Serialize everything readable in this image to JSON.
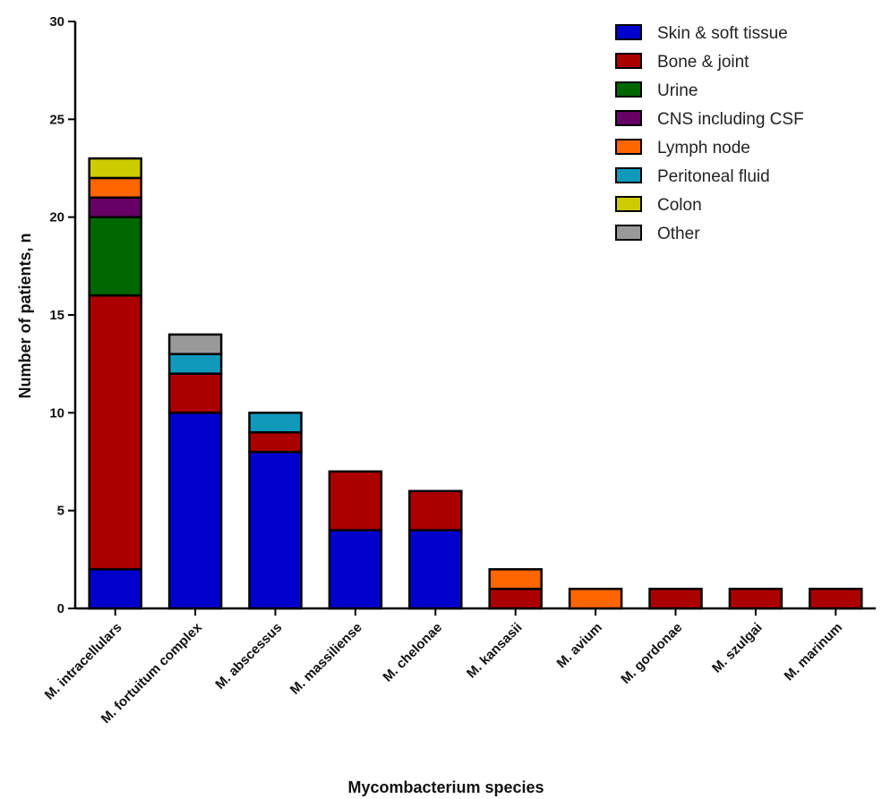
{
  "chart_data": {
    "type": "bar",
    "stacked": true,
    "title": "",
    "xlabel": "Mycombacterium species",
    "ylabel": "Number of patients, n",
    "ylim": [
      0,
      30
    ],
    "yticks": [
      0,
      5,
      10,
      15,
      20,
      25,
      30
    ],
    "grid": false,
    "legend_position": "top-right",
    "categories": [
      "M. intracellulars",
      "M. fortuitum complex",
      "M. abscessus",
      "M. massiliense",
      "M. chelonae",
      "M. kansasii",
      "M. avium",
      "M. gordonae",
      "M. szulgai",
      "M. marinum"
    ],
    "series": [
      {
        "name": "Skin & soft tissue",
        "color": "#0000cc",
        "values": [
          2,
          10,
          8,
          4,
          4,
          0,
          0,
          0,
          0,
          0
        ]
      },
      {
        "name": "Bone & joint",
        "color": "#aa0000",
        "values": [
          14,
          2,
          1,
          3,
          2,
          1,
          0,
          1,
          1,
          1
        ]
      },
      {
        "name": "Urine",
        "color": "#006600",
        "values": [
          4,
          0,
          0,
          0,
          0,
          0,
          0,
          0,
          0,
          0
        ]
      },
      {
        "name": "CNS including CSF",
        "color": "#660066",
        "values": [
          1,
          0,
          0,
          0,
          0,
          0,
          0,
          0,
          0,
          0
        ]
      },
      {
        "name": "Lymph node",
        "color": "#ff6600",
        "values": [
          1,
          0,
          0,
          0,
          0,
          1,
          1,
          0,
          0,
          0
        ]
      },
      {
        "name": "Peritoneal fluid",
        "color": "#1199bb",
        "values": [
          0,
          1,
          1,
          0,
          0,
          0,
          0,
          0,
          0,
          0
        ]
      },
      {
        "name": "Colon",
        "color": "#cccc00",
        "values": [
          1,
          0,
          0,
          0,
          0,
          0,
          0,
          0,
          0,
          0
        ]
      },
      {
        "name": "Other",
        "color": "#999999",
        "values": [
          0,
          1,
          0,
          0,
          0,
          0,
          0,
          0,
          0,
          0
        ]
      }
    ]
  }
}
